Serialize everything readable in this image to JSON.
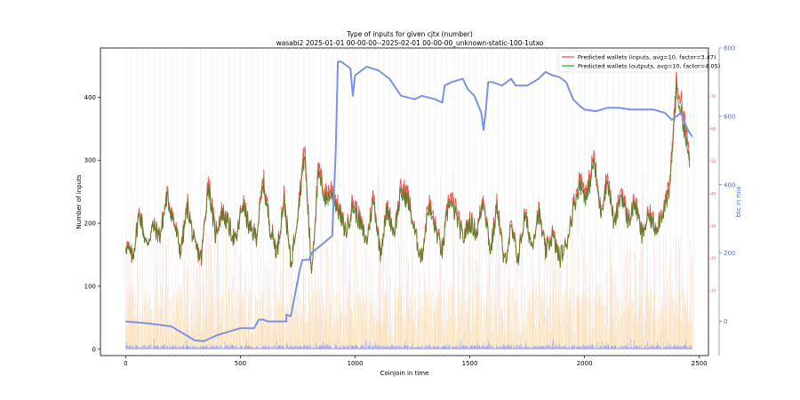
{
  "chart_data": {
    "type": "line",
    "title": "Type of inputs for given cjtx (number)",
    "subtitle": "wasabi2 2025-01-01 00-00-00--2025-02-01 00-00-00_unknown-static-100-1utxo",
    "xlabel": "Coinjoin in time",
    "ylabel": "Number of inputs",
    "y2label": "btc in mix",
    "xlim": [
      -110,
      2540
    ],
    "ylim": [
      -10,
      478
    ],
    "y2lim": [
      -100,
      800
    ],
    "y3lim": [
      -10,
      85
    ],
    "xticks": [
      0,
      500,
      1000,
      1500,
      2000,
      2500
    ],
    "yticks": [
      0,
      100,
      200,
      300,
      400
    ],
    "y2ticks": [
      0,
      200,
      400,
      600,
      800
    ],
    "y3ticks": [
      10,
      20,
      30,
      40,
      50,
      60,
      70
    ],
    "grid": "vertical-lines",
    "legend_position": "top-right",
    "colors": {
      "inputs": "#f0443a",
      "outputs": "#2ca02c",
      "blend": "#7a6a2c",
      "btc": "#7a93e3",
      "bars": "#9ea6f0",
      "orange": "#fbd79a",
      "pink": "#f4c6c6"
    },
    "series": [
      {
        "name": "Predicted wallets (inputs, avg=10, factor=3.47)",
        "axis": "right-inner",
        "x": [
          0,
          30,
          60,
          90,
          120,
          150,
          180,
          210,
          240,
          270,
          300,
          330,
          360,
          390,
          420,
          450,
          480,
          510,
          540,
          570,
          600,
          630,
          660,
          690,
          720,
          750,
          780,
          810,
          840,
          870,
          900,
          930,
          960,
          990,
          1020,
          1050,
          1080,
          1110,
          1140,
          1170,
          1200,
          1230,
          1260,
          1290,
          1320,
          1350,
          1380,
          1410,
          1440,
          1470,
          1500,
          1530,
          1560,
          1590,
          1620,
          1650,
          1680,
          1710,
          1740,
          1770,
          1800,
          1830,
          1860,
          1890,
          1920,
          1950,
          1980,
          2010,
          2040,
          2070,
          2100,
          2130,
          2160,
          2190,
          2220,
          2250,
          2280,
          2310,
          2340,
          2370,
          2400,
          2430,
          2460
        ],
        "values": [
          25,
          20,
          35,
          24,
          30,
          27,
          40,
          32,
          22,
          37,
          24,
          20,
          45,
          28,
          35,
          30,
          25,
          38,
          29,
          27,
          45,
          30,
          22,
          40,
          18,
          35,
          55,
          16,
          48,
          40,
          42,
          35,
          28,
          38,
          32,
          25,
          40,
          22,
          36,
          28,
          42,
          40,
          28,
          20,
          38,
          30,
          22,
          40,
          35,
          26,
          32,
          28,
          40,
          22,
          38,
          18,
          30,
          20,
          34,
          24,
          35,
          22,
          28,
          20,
          24,
          36,
          45,
          40,
          52,
          35,
          46,
          30,
          42,
          32,
          38,
          27,
          34,
          30,
          35,
          42,
          75,
          66,
          50
        ]
      },
      {
        "name": "Predicted wallets (outputs, avg=10, factor=4.05)",
        "axis": "right-inner",
        "x": [
          0,
          30,
          60,
          90,
          120,
          150,
          180,
          210,
          240,
          270,
          300,
          330,
          360,
          390,
          420,
          450,
          480,
          510,
          540,
          570,
          600,
          630,
          660,
          690,
          720,
          750,
          780,
          810,
          840,
          870,
          900,
          930,
          960,
          990,
          1020,
          1050,
          1080,
          1110,
          1140,
          1170,
          1200,
          1230,
          1260,
          1290,
          1320,
          1350,
          1380,
          1410,
          1440,
          1470,
          1500,
          1530,
          1560,
          1590,
          1620,
          1650,
          1680,
          1710,
          1740,
          1770,
          1800,
          1830,
          1860,
          1890,
          1920,
          1950,
          1980,
          2010,
          2040,
          2070,
          2100,
          2130,
          2160,
          2190,
          2220,
          2250,
          2280,
          2310,
          2340,
          2370,
          2400,
          2430,
          2460
        ],
        "values": [
          24,
          20,
          34,
          24,
          30,
          27,
          39,
          31,
          22,
          36,
          24,
          20,
          43,
          27,
          34,
          30,
          25,
          37,
          29,
          27,
          43,
          29,
          22,
          38,
          18,
          34,
          52,
          16,
          46,
          38,
          40,
          34,
          28,
          36,
          31,
          25,
          38,
          22,
          35,
          28,
          40,
          38,
          28,
          20,
          36,
          29,
          22,
          38,
          33,
          26,
          31,
          28,
          38,
          22,
          36,
          18,
          29,
          20,
          33,
          24,
          34,
          22,
          27,
          20,
          24,
          35,
          43,
          38,
          50,
          34,
          44,
          30,
          40,
          31,
          37,
          27,
          33,
          29,
          34,
          40,
          72,
          62,
          48
        ]
      },
      {
        "name": "btc in mix",
        "axis": "right",
        "x": [
          0,
          100,
          200,
          300,
          340,
          400,
          450,
          500,
          560,
          580,
          600,
          620,
          700,
          700,
          720,
          760,
          770,
          800,
          810,
          900,
          915,
          925,
          940,
          980,
          990,
          1000,
          1050,
          1100,
          1150,
          1200,
          1260,
          1290,
          1350,
          1380,
          1390,
          1420,
          1470,
          1490,
          1520,
          1550,
          1560,
          1570,
          1580,
          1600,
          1640,
          1680,
          1700,
          1750,
          1800,
          1830,
          1860,
          1890,
          1920,
          1950,
          1980,
          2000,
          2050,
          2100,
          2150,
          2200,
          2250,
          2300,
          2350,
          2380,
          2400,
          2420,
          2450,
          2470
        ],
        "values": [
          0,
          -6,
          -15,
          -55,
          -58,
          -40,
          -30,
          -20,
          -20,
          5,
          5,
          0,
          0,
          20,
          15,
          155,
          180,
          180,
          200,
          250,
          490,
          760,
          760,
          740,
          660,
          720,
          745,
          735,
          710,
          660,
          650,
          660,
          650,
          640,
          690,
          700,
          710,
          680,
          660,
          610,
          560,
          620,
          700,
          700,
          690,
          710,
          690,
          690,
          710,
          730,
          720,
          715,
          700,
          650,
          630,
          620,
          615,
          625,
          625,
          620,
          620,
          620,
          610,
          590,
          600,
          610,
          560,
          540
        ]
      }
    ]
  }
}
